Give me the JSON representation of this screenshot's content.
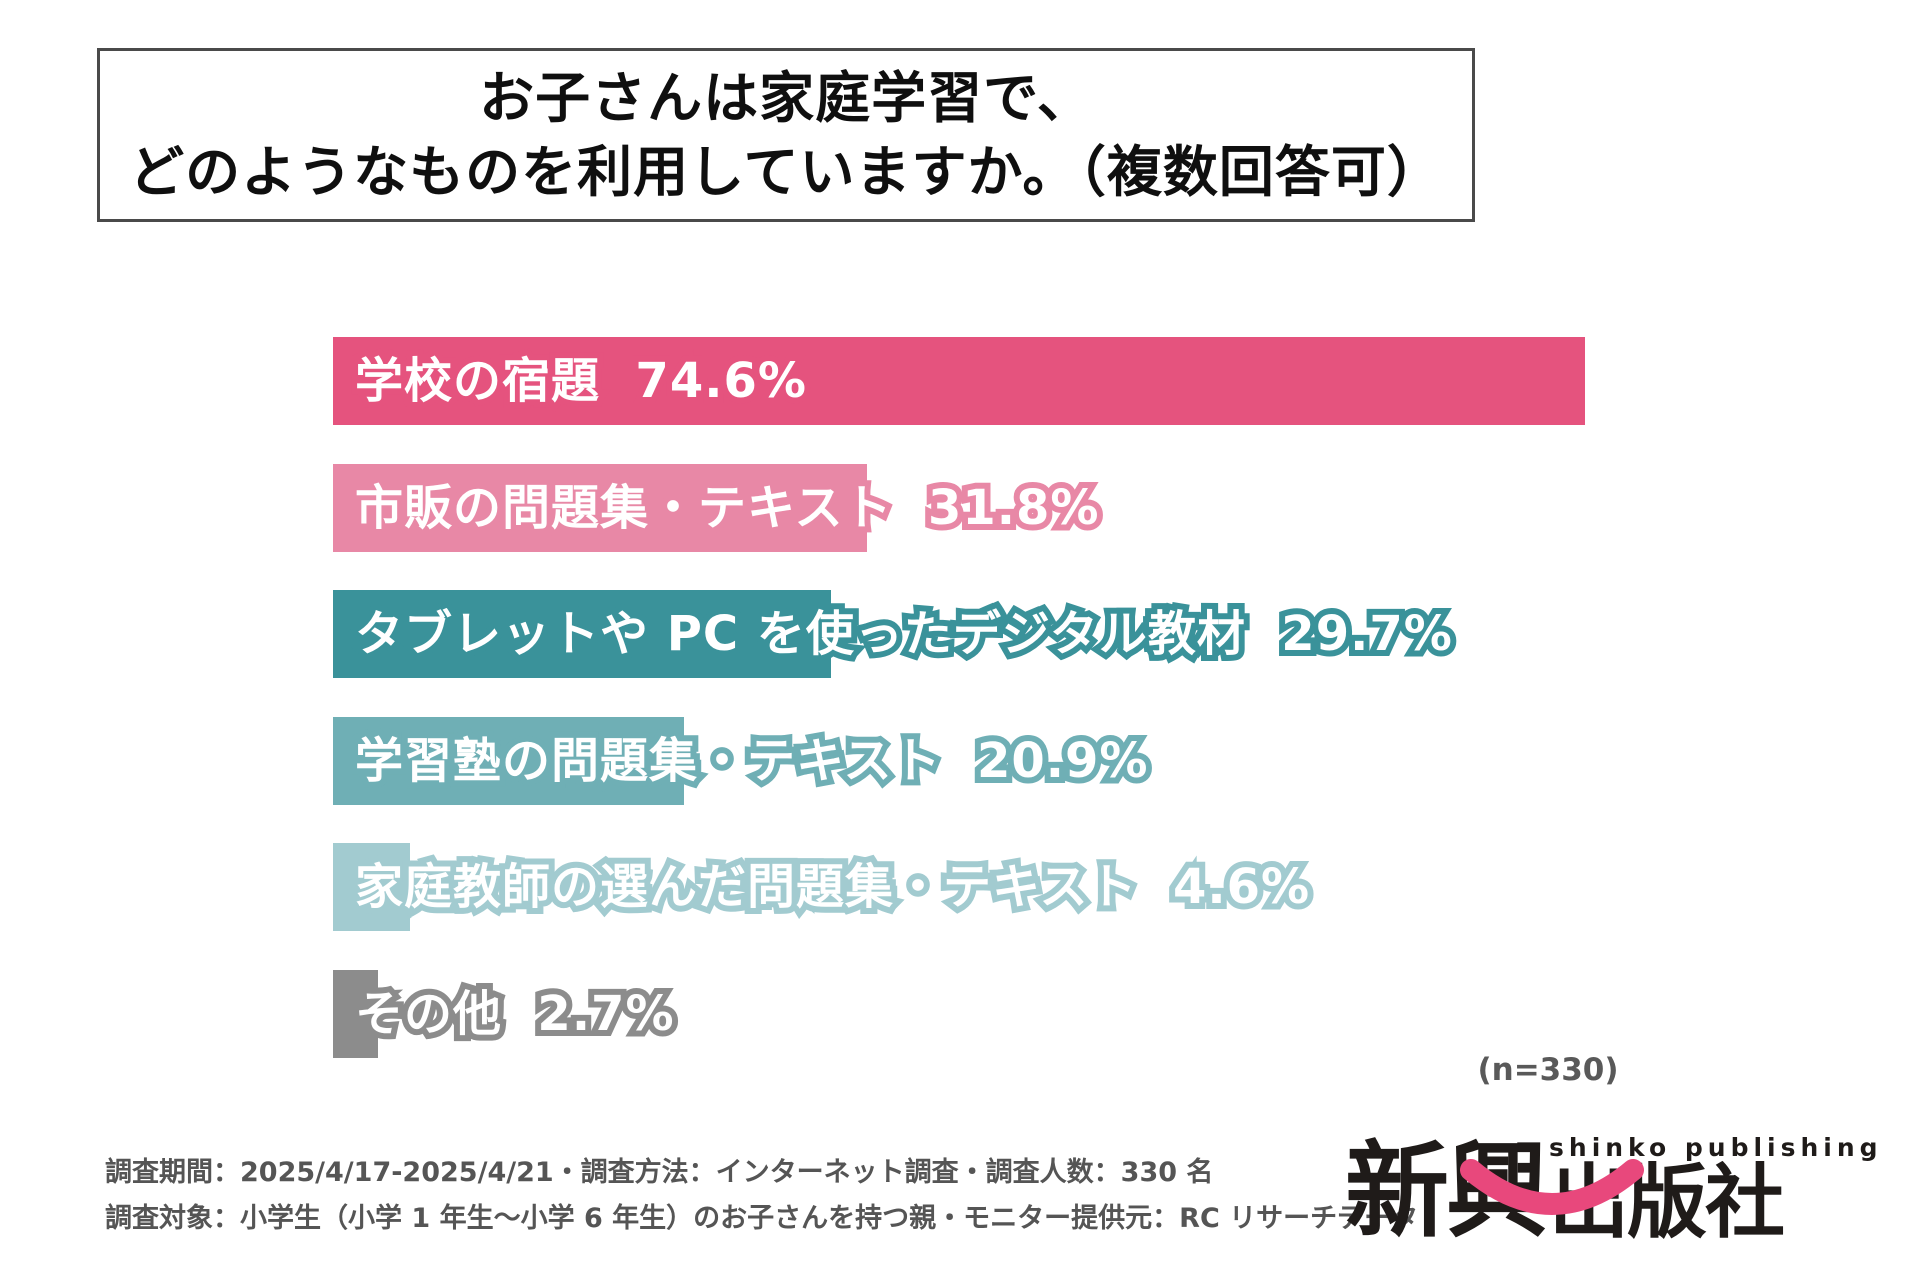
{
  "title": {
    "line1": "お子さんは家庭学習で、",
    "line2": "どのようなものを利用していますか。（複数回答可）"
  },
  "chart_data": {
    "type": "bar",
    "orientation": "horizontal",
    "title": "お子さんは家庭学習で、どのようなものを利用していますか。（複数回答可）",
    "categories": [
      "学校の宿題",
      "市販の問題集・テキスト",
      "タブレットや PC を使ったデジタル教材",
      "学習塾の問題集・テキスト",
      "家庭教師の選んだ問題集・テキスト",
      "その他"
    ],
    "values": [
      74.6,
      31.8,
      29.7,
      20.9,
      4.6,
      2.7
    ],
    "bar_colors": [
      "#e5537e",
      "#e888a6",
      "#3a929a",
      "#6fafb5",
      "#a2cbd0",
      "#8c8c8c"
    ],
    "value_suffix": "%",
    "xlim": [
      0,
      80
    ],
    "grid": false,
    "legend": false,
    "sample_note": "(n=330)"
  },
  "sample_note": "(n=330)",
  "footer": {
    "line1": "調査期間：2025/4/17-2025/4/21・調査方法：インターネット調査・調査人数：330 名",
    "line2": "調査対象：小学生（小学 1 年生～小学 6 年生）のお子さんを持つ親・モニター提供元：RC リサーチデータ"
  },
  "logo": {
    "kanji_large": "新興",
    "kanji_small": "出版社",
    "romaji": "shinko publishing",
    "text_color": "#1f1b19",
    "smile_color": "#e8487c"
  }
}
